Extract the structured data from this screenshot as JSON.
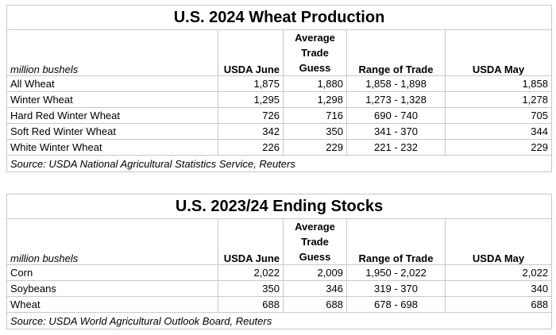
{
  "production": {
    "title": "U.S. 2024 Wheat Production",
    "unit_label": "million bushels",
    "columns": {
      "usda_june": "USDA June",
      "avg_line1": "Average",
      "avg_line2": "Trade",
      "avg_line3": "Guess",
      "range": "Range of Trade",
      "usda_may": "USDA May"
    },
    "rows": [
      {
        "name": "All Wheat",
        "june": "1,875",
        "avg": "1,880",
        "range": "1,858 - 1,898",
        "may": "1,858"
      },
      {
        "name": "Winter Wheat",
        "june": "1,295",
        "avg": "1,298",
        "range": "1,273 - 1,328",
        "may": "1,278"
      },
      {
        "name": "Hard Red Winter Wheat",
        "june": "726",
        "avg": "716",
        "range": "690 - 740",
        "may": "705"
      },
      {
        "name": "Soft Red Winter Wheat",
        "june": "342",
        "avg": "350",
        "range": "341 - 370",
        "may": "344"
      },
      {
        "name": "White Winter Wheat",
        "june": "226",
        "avg": "229",
        "range": "221 - 232",
        "may": "229"
      }
    ],
    "source": "Source: USDA National Agricultural Statistics Service, Reuters"
  },
  "stocks": {
    "title": "U.S. 2023/24 Ending Stocks",
    "unit_label": "million bushels",
    "columns": {
      "usda_june": "USDA June",
      "avg_line1": "Average",
      "avg_line2": "Trade",
      "avg_line3": "Guess",
      "range": "Range of Trade",
      "usda_may": "USDA May"
    },
    "rows": [
      {
        "name": "Corn",
        "june": "2,022",
        "avg": "2,009",
        "range": "1,950 - 2,022",
        "may": "2,022"
      },
      {
        "name": "Soybeans",
        "june": "350",
        "avg": "346",
        "range": "319 - 370",
        "may": "340"
      },
      {
        "name": "Wheat",
        "june": "688",
        "avg": "688",
        "range": "678 - 698",
        "may": "688"
      }
    ],
    "source": "Source: USDA World Agricultural Outlook Board, Reuters"
  }
}
